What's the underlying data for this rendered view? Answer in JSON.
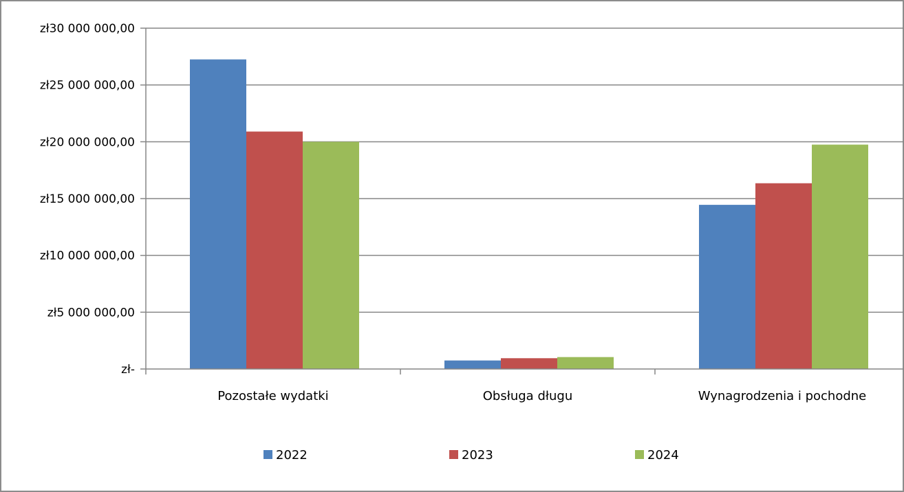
{
  "chart_data": {
    "type": "bar",
    "title": "",
    "xlabel": "",
    "ylabel": "",
    "categories": [
      "Pozostałe wydatki",
      "Obsługa długu",
      "Wynagrodzenia i pochodne"
    ],
    "series": [
      {
        "name": "2022",
        "color": "#4F81BD",
        "values": [
          27250000,
          750000,
          14450000
        ]
      },
      {
        "name": "2023",
        "color": "#C0504D",
        "values": [
          20900000,
          950000,
          16350000
        ]
      },
      {
        "name": "2024",
        "color": "#9BBB59",
        "values": [
          20000000,
          1050000,
          19750000
        ]
      }
    ],
    "ylim": [
      0,
      30000000
    ],
    "yticks": [
      0,
      5000000,
      10000000,
      15000000,
      20000000,
      25000000,
      30000000
    ],
    "ytick_labels": [
      "zł-",
      "zł5 000 000,00",
      "zł10 000 000,00",
      "zł15 000 000,00",
      "zł20 000 000,00",
      "zł25 000 000,00",
      "zł30 000 000,00"
    ],
    "grid": true,
    "legend_position": "bottom"
  }
}
